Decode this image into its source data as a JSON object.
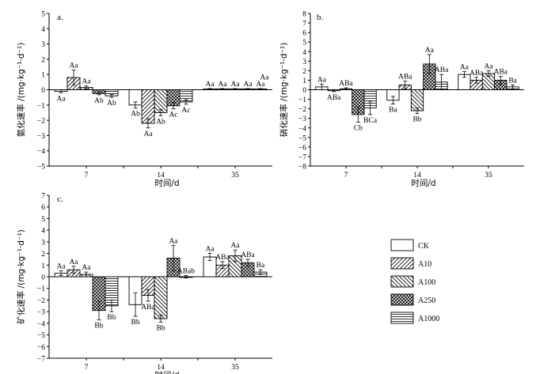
{
  "legend": [
    {
      "name": "CK",
      "pattern": "none"
    },
    {
      "name": "A10",
      "pattern": "diag-right"
    },
    {
      "name": "A100",
      "pattern": "diag-left"
    },
    {
      "name": "A250",
      "pattern": "cross"
    },
    {
      "name": "A1000",
      "pattern": "horizontal"
    }
  ],
  "chart_data": [
    {
      "panel": "a.",
      "type": "bar",
      "ylabel": "氨化速率 /(mg·kg⁻¹·d⁻¹)",
      "xlabel": "时间/d",
      "ylim": [
        -5,
        5
      ],
      "yticks": [
        -5,
        -4,
        -3,
        -2,
        -1,
        0,
        1,
        2,
        3,
        4,
        5
      ],
      "categories": [
        "7",
        "14",
        "35"
      ],
      "series": [
        {
          "name": "CK",
          "values": [
            -0.1,
            -1.0,
            0.05
          ],
          "errors": [
            0.1,
            0.2,
            0.03
          ],
          "labels": [
            "Aa",
            "Ab",
            "Aa"
          ]
        },
        {
          "name": "A10",
          "values": [
            0.8,
            -2.2,
            0.05
          ],
          "errors": [
            0.5,
            0.3,
            0.03
          ],
          "labels": [
            "Aa",
            "Aa",
            "Aa"
          ]
        },
        {
          "name": "A100",
          "values": [
            0.15,
            -1.5,
            0.05
          ],
          "errors": [
            0.1,
            0.2,
            0.03
          ],
          "labels": [
            "Aa",
            "Ab",
            "Aa"
          ]
        },
        {
          "name": "A250",
          "values": [
            -0.25,
            -1.05,
            0.05
          ],
          "errors": [
            0.08,
            0.2,
            0.03
          ],
          "labels": [
            "Ab",
            "Ac",
            "Aa"
          ]
        },
        {
          "name": "A1000",
          "values": [
            -0.4,
            -0.8,
            0.05
          ],
          "errors": [
            0.1,
            0.15,
            0.03
          ],
          "labels": [
            "Ab",
            "Ac",
            "Aa"
          ]
        }
      ],
      "extra_labels": [
        "Aa"
      ]
    },
    {
      "panel": "b.",
      "type": "bar",
      "ylabel": "硝化速率 /(mg·kg⁻¹·d⁻¹)",
      "xlabel": "时间/d",
      "ylim": [
        -8,
        8
      ],
      "yticks": [
        -8,
        -7,
        -6,
        -5,
        -4,
        -3,
        -2,
        -1,
        0,
        1,
        2,
        3,
        4,
        5,
        6,
        7,
        8
      ],
      "categories": [
        "7",
        "14",
        "35"
      ],
      "series": [
        {
          "name": "CK",
          "values": [
            0.3,
            -1.1,
            1.6
          ],
          "errors": [
            0.3,
            0.4,
            0.3
          ],
          "labels": [
            "Aa",
            "Ba",
            "Aa"
          ]
        },
        {
          "name": "A10",
          "values": [
            -0.1,
            0.5,
            1.0
          ],
          "errors": [
            0.1,
            0.4,
            0.3
          ],
          "labels": [
            "ABa",
            "ABa",
            "ABa"
          ]
        },
        {
          "name": "A100",
          "values": [
            0.1,
            -2.2,
            1.7
          ],
          "errors": [
            0.1,
            0.3,
            0.3
          ],
          "labels": [
            "ABa",
            "Bb",
            "Aa"
          ]
        },
        {
          "name": "A250",
          "values": [
            -2.6,
            2.7,
            1.0
          ],
          "errors": [
            0.8,
            1.0,
            0.4
          ],
          "labels": [
            "Cb",
            "Aa",
            "ABa"
          ]
        },
        {
          "name": "A1000",
          "values": [
            -1.9,
            0.8,
            0.3
          ],
          "errors": [
            0.7,
            0.8,
            0.2
          ],
          "labels": [
            "BCa",
            "ABa",
            "Ba"
          ]
        }
      ]
    },
    {
      "panel": "c.",
      "type": "bar",
      "ylabel": "矿化速率 /(mg·kg⁻¹·d⁻¹)",
      "xlabel": "时间/d",
      "ylim": [
        -7,
        7
      ],
      "yticks": [
        -7,
        -6,
        -5,
        -4,
        -3,
        -2,
        -1,
        0,
        1,
        2,
        3,
        4,
        5,
        6,
        7
      ],
      "categories": [
        "7",
        "14",
        "35"
      ],
      "series": [
        {
          "name": "CK",
          "values": [
            0.3,
            -2.4,
            1.7
          ],
          "errors": [
            0.2,
            1.0,
            0.3
          ],
          "labels": [
            "Aa",
            "Bb",
            "Aa"
          ]
        },
        {
          "name": "A10",
          "values": [
            0.6,
            -1.6,
            1.0
          ],
          "errors": [
            0.3,
            0.5,
            0.3
          ],
          "labels": [
            "Aa",
            "ABa",
            "ABa"
          ]
        },
        {
          "name": "A100",
          "values": [
            0.2,
            -3.6,
            1.8
          ],
          "errors": [
            0.2,
            0.3,
            0.5
          ],
          "labels": [
            "Aa",
            "Bb",
            "Aa"
          ]
        },
        {
          "name": "A250",
          "values": [
            -2.9,
            1.6,
            1.2
          ],
          "errors": [
            0.8,
            1.1,
            0.3
          ],
          "labels": [
            "Bb",
            "Aa",
            "ABa"
          ]
        },
        {
          "name": "A1000",
          "values": [
            -2.5,
            0.0,
            0.4
          ],
          "errors": [
            0.5,
            0.1,
            0.2
          ],
          "labels": [
            "Bb",
            "ABab",
            "Ba"
          ]
        }
      ]
    }
  ]
}
